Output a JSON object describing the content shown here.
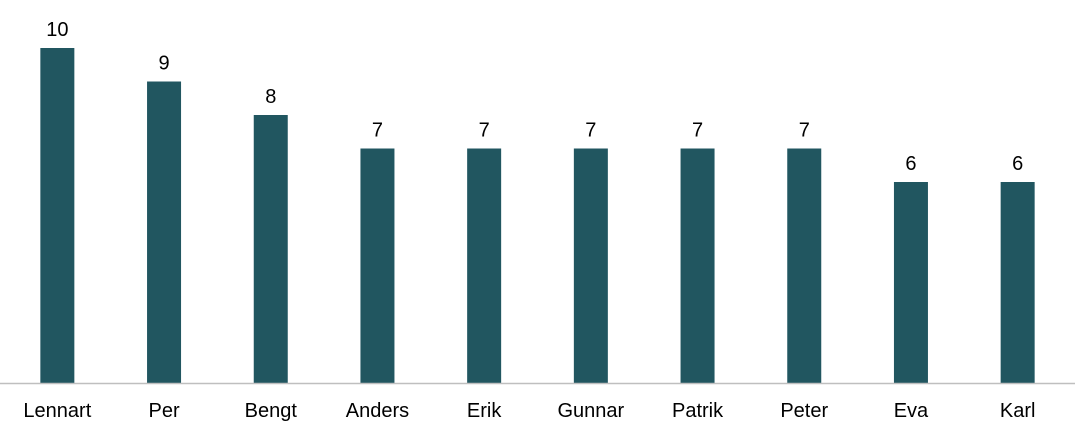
{
  "chart_data": {
    "type": "bar",
    "title": "",
    "xlabel": "",
    "ylabel": "",
    "categories": [
      "Lennart",
      "Per",
      "Bengt",
      "Anders",
      "Erik",
      "Gunnar",
      "Patrik",
      "Peter",
      "Eva",
      "Karl"
    ],
    "values": [
      10,
      9,
      8,
      7,
      7,
      7,
      7,
      7,
      6,
      6
    ],
    "ylim": [
      0,
      10
    ],
    "grid": false,
    "legend": "none",
    "data_labels": true,
    "colors": {
      "bar": "#215660",
      "axis": "#bfbfbf",
      "text": "#000000"
    }
  }
}
